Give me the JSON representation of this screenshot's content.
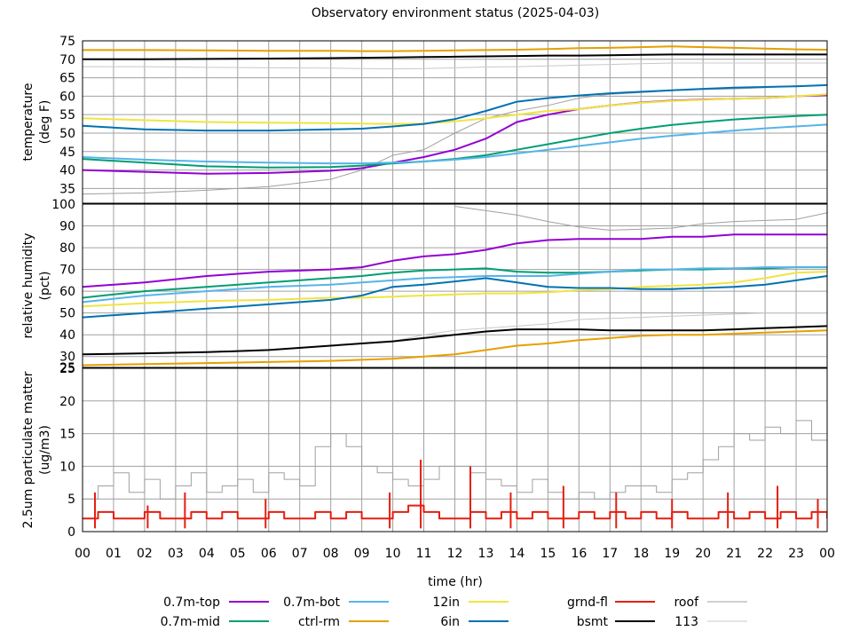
{
  "title": "Observatory environment status (2025-04-03)",
  "x_axis": {
    "label": "time (hr)",
    "range": [
      0,
      24
    ],
    "tick_labels": [
      "00",
      "01",
      "02",
      "03",
      "04",
      "05",
      "06",
      "07",
      "08",
      "09",
      "10",
      "11",
      "12",
      "13",
      "14",
      "15",
      "16",
      "17",
      "18",
      "19",
      "20",
      "21",
      "22",
      "23",
      "00"
    ]
  },
  "series_styles": [
    {
      "name": "0.7m-top",
      "color": "#9400d3",
      "width": 2
    },
    {
      "name": "0.7m-mid",
      "color": "#009e73",
      "width": 2
    },
    {
      "name": "0.7m-bot",
      "color": "#56b4e9",
      "width": 2
    },
    {
      "name": "ctrl-rm",
      "color": "#e69f00",
      "width": 2
    },
    {
      "name": "12in",
      "color": "#f0e442",
      "width": 2
    },
    {
      "name": "6in",
      "color": "#0072b2",
      "width": 2
    },
    {
      "name": "grnd-fl",
      "color": "#e51e10",
      "width": 2
    },
    {
      "name": "bsmt",
      "color": "#000000",
      "width": 2
    },
    {
      "name": "roof",
      "color": "#a0a0a0",
      "width": 1
    },
    {
      "name": "113",
      "color": "#c8c8c8",
      "width": 1
    }
  ],
  "chart_data": [
    {
      "type": "line",
      "ylabel": [
        "temperature",
        "(deg F)"
      ],
      "ylim": [
        31,
        75
      ],
      "yticks": [
        35,
        40,
        45,
        50,
        55,
        60,
        65,
        70,
        75
      ],
      "x": [
        0,
        2,
        4,
        6,
        8,
        9,
        10,
        11,
        12,
        13,
        14,
        15,
        16,
        17,
        18,
        19,
        20,
        21,
        22,
        23,
        24
      ],
      "series": [
        {
          "name": "0.7m-top",
          "values": [
            40,
            39.5,
            39,
            39.2,
            39.8,
            40.5,
            42,
            43.5,
            45.5,
            48.5,
            53,
            55,
            56.5,
            57.5,
            58.3,
            58.8,
            59.1,
            59.3,
            59.5,
            60,
            60.3
          ]
        },
        {
          "name": "0.7m-mid",
          "values": [
            43,
            42,
            41,
            40.7,
            40.8,
            41.2,
            41.8,
            42.3,
            43,
            44,
            45.5,
            47,
            48.5,
            50,
            51.2,
            52.2,
            53,
            53.7,
            54.2,
            54.6,
            55
          ]
        },
        {
          "name": "0.7m-bot",
          "values": [
            43.5,
            42.8,
            42.3,
            42,
            41.8,
            41.8,
            42,
            42.3,
            42.8,
            43.5,
            44.5,
            45.5,
            46.5,
            47.5,
            48.5,
            49.3,
            50,
            50.7,
            51.3,
            51.8,
            52.3
          ]
        },
        {
          "name": "ctrl-rm",
          "values": [
            72.5,
            72.5,
            72.4,
            72.3,
            72.3,
            72.2,
            72.2,
            72.3,
            72.4,
            72.5,
            72.6,
            72.8,
            73,
            73.1,
            73.3,
            73.5,
            73.3,
            73.1,
            72.9,
            72.7,
            72.6
          ]
        },
        {
          "name": "12in",
          "values": [
            54,
            53.5,
            53,
            52.8,
            52.7,
            52.6,
            52.5,
            52.6,
            53.2,
            54,
            55,
            56,
            56.5,
            57.5,
            58.2,
            58.7,
            59,
            59.3,
            59.5,
            60,
            60.5
          ]
        },
        {
          "name": "6in",
          "values": [
            52,
            51,
            50.7,
            50.7,
            51,
            51.2,
            51.8,
            52.5,
            53.8,
            56,
            58.5,
            59.5,
            60.2,
            60.8,
            61.2,
            61.6,
            62,
            62.3,
            62.5,
            62.7,
            63
          ]
        },
        {
          "name": "bsmt",
          "values": [
            70,
            70,
            70.1,
            70.2,
            70.3,
            70.4,
            70.5,
            70.6,
            70.7,
            70.8,
            70.9,
            71,
            71,
            71.1,
            71.2,
            71.3,
            71.3,
            71.3,
            71.3,
            71.3,
            71.3
          ]
        },
        {
          "name": "roof",
          "values": [
            33.5,
            33.8,
            34.5,
            35.5,
            37.5,
            40,
            44,
            45.5,
            50,
            54,
            56,
            57.5,
            59.5,
            60.5,
            61,
            61.5,
            61.8,
            62,
            62.3,
            62.8,
            63
          ]
        },
        {
          "name": "113",
          "values": [
            68,
            68,
            67.8,
            67.7,
            67.6,
            67.5,
            67.4,
            67.5,
            67.7,
            67.9,
            68,
            68.2,
            68.4,
            68.6,
            68.8,
            69,
            69,
            69,
            69,
            69,
            69
          ]
        }
      ]
    },
    {
      "type": "line",
      "ylabel": [
        "relative humidity",
        "(pct)"
      ],
      "ylim": [
        25,
        100
      ],
      "yticks": [
        25,
        30,
        40,
        50,
        60,
        70,
        80,
        90,
        100
      ],
      "x": [
        0,
        2,
        4,
        6,
        8,
        9,
        10,
        11,
        12,
        13,
        14,
        15,
        16,
        17,
        18,
        19,
        20,
        21,
        22,
        23,
        24
      ],
      "series": [
        {
          "name": "0.7m-top",
          "values": [
            62,
            64,
            67,
            69,
            70,
            71,
            74,
            76,
            77,
            79,
            82,
            83.5,
            84,
            84,
            84,
            85,
            85,
            86,
            86,
            86,
            86
          ]
        },
        {
          "name": "0.7m-mid",
          "values": [
            57,
            60,
            62,
            64,
            66,
            67,
            68.5,
            69.5,
            70,
            70.5,
            69,
            68.5,
            68.5,
            69,
            69.5,
            70,
            70,
            70.5,
            70.5,
            71,
            71
          ]
        },
        {
          "name": "0.7m-bot",
          "values": [
            55,
            58,
            60,
            62,
            63,
            64,
            65,
            66,
            66.5,
            67,
            67,
            67,
            68,
            69,
            70,
            70,
            70.5,
            70.5,
            71,
            71,
            71
          ]
        },
        {
          "name": "ctrl-rm",
          "values": [
            26,
            26.5,
            27,
            27.5,
            28,
            28.5,
            29,
            30,
            31,
            33,
            35,
            36,
            37.5,
            38.5,
            39.5,
            40,
            40,
            40.5,
            41,
            41.5,
            42
          ]
        },
        {
          "name": "12in",
          "values": [
            53,
            54.5,
            55.5,
            56,
            57,
            57,
            57.5,
            58,
            58.5,
            59,
            59,
            59.5,
            60.5,
            61,
            62,
            62.5,
            63,
            64,
            66,
            68.5,
            69
          ]
        },
        {
          "name": "6in",
          "values": [
            48,
            50,
            52,
            54,
            56,
            58,
            62,
            63,
            64.5,
            66,
            64,
            62,
            61.5,
            61.5,
            61,
            61,
            61.5,
            62,
            63,
            65,
            67
          ]
        },
        {
          "name": "bsmt",
          "values": [
            31,
            31.5,
            32,
            33,
            35,
            36,
            37,
            38.5,
            40,
            41.5,
            42.5,
            42.5,
            42.5,
            42,
            42,
            42,
            42,
            42.5,
            43,
            43.5,
            44
          ]
        },
        {
          "name": "roof",
          "values": [
            null,
            null,
            null,
            null,
            null,
            null,
            null,
            null,
            99,
            97,
            95,
            92,
            89.5,
            88,
            88.5,
            89,
            91,
            92,
            92.5,
            93,
            96
          ]
        },
        {
          "name": "113",
          "values": [
            null,
            null,
            null,
            null,
            null,
            null,
            37,
            40,
            42,
            43,
            44,
            45,
            47,
            47.5,
            48,
            48.5,
            49,
            49.5,
            50,
            50,
            50
          ]
        }
      ]
    },
    {
      "type": "line",
      "ylabel": [
        "2.5um particulate matter",
        "(ug/m3)"
      ],
      "ylim": [
        0,
        25
      ],
      "yticks": [
        0,
        5,
        10,
        15,
        20,
        25
      ],
      "x": [
        0,
        0.5,
        1,
        1.5,
        2,
        2.5,
        3,
        3.5,
        4,
        4.5,
        5,
        5.5,
        6,
        6.5,
        7,
        7.5,
        8,
        8.5,
        9,
        9.5,
        10,
        10.5,
        11,
        11.5,
        12,
        12.5,
        13,
        13.5,
        14,
        14.5,
        15,
        15.5,
        16,
        16.5,
        17,
        17.5,
        18,
        18.5,
        19,
        19.5,
        20,
        20.5,
        21,
        21.5,
        22,
        22.5,
        23,
        23.5,
        24
      ],
      "series": [
        {
          "name": "grnd-fl",
          "values": [
            2,
            3,
            2,
            2,
            3,
            2,
            2,
            3,
            2,
            3,
            2,
            2,
            3,
            2,
            2,
            3,
            2,
            3,
            2,
            2,
            3,
            4,
            3,
            2,
            2,
            3,
            2,
            3,
            2,
            3,
            2,
            2,
            3,
            2,
            3,
            2,
            3,
            2,
            3,
            2,
            2,
            3,
            2,
            3,
            2,
            3,
            2,
            3,
            2
          ]
        },
        {
          "name": "roof",
          "values": [
            5,
            7,
            9,
            6,
            8,
            5,
            7,
            9,
            6,
            7,
            8,
            6,
            9,
            8,
            7,
            13,
            15,
            13,
            10,
            9,
            8,
            7,
            8,
            10,
            10,
            9,
            8,
            7,
            6,
            8,
            6,
            5,
            6,
            5,
            6,
            7,
            7,
            6,
            8,
            9,
            11,
            13,
            15,
            14,
            16,
            15,
            17,
            14,
            12
          ]
        },
        {
          "name": "113",
          "values": [
            null,
            null,
            null,
            null,
            null,
            null,
            null,
            null,
            null,
            null,
            null,
            null,
            null,
            null,
            null,
            null,
            null,
            null,
            null,
            null,
            null,
            null,
            null,
            null,
            null,
            null,
            null,
            null,
            null,
            null,
            null,
            null,
            null,
            null,
            null,
            null,
            null,
            null,
            null,
            null,
            null,
            null,
            null,
            null,
            null,
            null,
            null,
            null,
            null
          ]
        }
      ],
      "spikes": {
        "name": "grnd-fl",
        "x": [
          0.4,
          2.1,
          3.3,
          5.9,
          9.9,
          10.9,
          12.5,
          13.8,
          15.5,
          17.2,
          19.0,
          20.8,
          22.4,
          23.7
        ],
        "values": [
          6,
          4,
          6,
          5,
          6,
          11,
          10,
          6,
          7,
          6,
          5,
          6,
          7,
          5
        ]
      }
    }
  ],
  "legend": {
    "rows": [
      [
        "0.7m-top",
        "0.7m-bot",
        "12in",
        "grnd-fl",
        "roof"
      ],
      [
        "0.7m-mid",
        "ctrl-rm",
        "6in",
        "bsmt",
        "113"
      ]
    ]
  }
}
